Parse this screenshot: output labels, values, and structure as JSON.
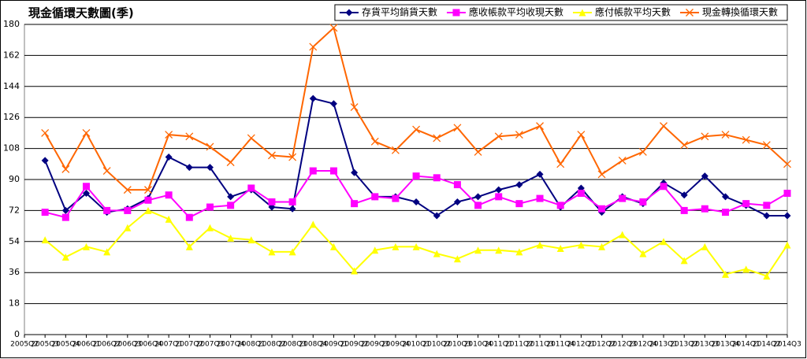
{
  "chart_data": {
    "type": "line",
    "title": "現金循環天數圖(季)",
    "categories": [
      "2005Q2",
      "2005Q3",
      "2005Q4",
      "2006Q1",
      "2006Q2",
      "2006Q3",
      "2006Q4",
      "2007Q1",
      "2007Q2",
      "2007Q3",
      "2007Q4",
      "2008Q1",
      "2008Q2",
      "2008Q3",
      "2008Q4",
      "2009Q1",
      "2009Q2",
      "2009Q3",
      "2009Q4",
      "2010Q1",
      "2010Q2",
      "2010Q3",
      "2010Q4",
      "2011Q1",
      "2011Q2",
      "2011Q3",
      "2011Q4",
      "2012Q1",
      "2012Q2",
      "2012Q3",
      "2012Q4",
      "2013Q1",
      "2013Q2",
      "2013Q3",
      "2013Q4",
      "2014Q1",
      "2014Q2",
      "2014Q3"
    ],
    "series": [
      {
        "name": "存貨平均銷貨天數",
        "color": "#000080",
        "marker": "diamond",
        "values": [
          null,
          101,
          72,
          82,
          71,
          73,
          79,
          103,
          97,
          97,
          80,
          84,
          74,
          73,
          137,
          134,
          94,
          80,
          80,
          77,
          69,
          77,
          80,
          84,
          87,
          93,
          74,
          85,
          71,
          80,
          76,
          88,
          81,
          92,
          80,
          75,
          69,
          69
        ]
      },
      {
        "name": "應收帳款平均收現天數",
        "color": "#ff00ff",
        "marker": "square",
        "values": [
          null,
          71,
          68,
          86,
          72,
          72,
          78,
          81,
          68,
          74,
          75,
          85,
          77,
          77,
          95,
          95,
          76,
          80,
          79,
          92,
          91,
          87,
          75,
          80,
          76,
          79,
          75,
          82,
          73,
          79,
          77,
          86,
          72,
          73,
          71,
          76,
          75,
          82
        ]
      },
      {
        "name": "應付帳款平均天數",
        "color": "#ffff00",
        "marker": "triangle",
        "values": [
          null,
          55,
          45,
          51,
          48,
          62,
          72,
          67,
          51,
          62,
          56,
          55,
          48,
          48,
          64,
          51,
          37,
          49,
          51,
          51,
          47,
          44,
          49,
          49,
          48,
          52,
          50,
          52,
          51,
          58,
          47,
          54,
          43,
          51,
          35,
          38,
          34,
          52
        ]
      },
      {
        "name": "現金轉換循環天數",
        "color": "#ff6600",
        "marker": "x",
        "values": [
          null,
          117,
          96,
          117,
          95,
          84,
          84,
          116,
          115,
          109,
          100,
          114,
          104,
          103,
          167,
          178,
          132,
          112,
          107,
          119,
          114,
          120,
          106,
          115,
          116,
          121,
          99,
          116,
          93,
          101,
          106,
          121,
          110,
          115,
          116,
          113,
          110,
          99
        ]
      }
    ],
    "ylim": [
      0,
      180
    ],
    "yticks": [
      0,
      18,
      36,
      54,
      72,
      90,
      108,
      126,
      144,
      162,
      180
    ],
    "grid": true,
    "legend": "top-right"
  }
}
